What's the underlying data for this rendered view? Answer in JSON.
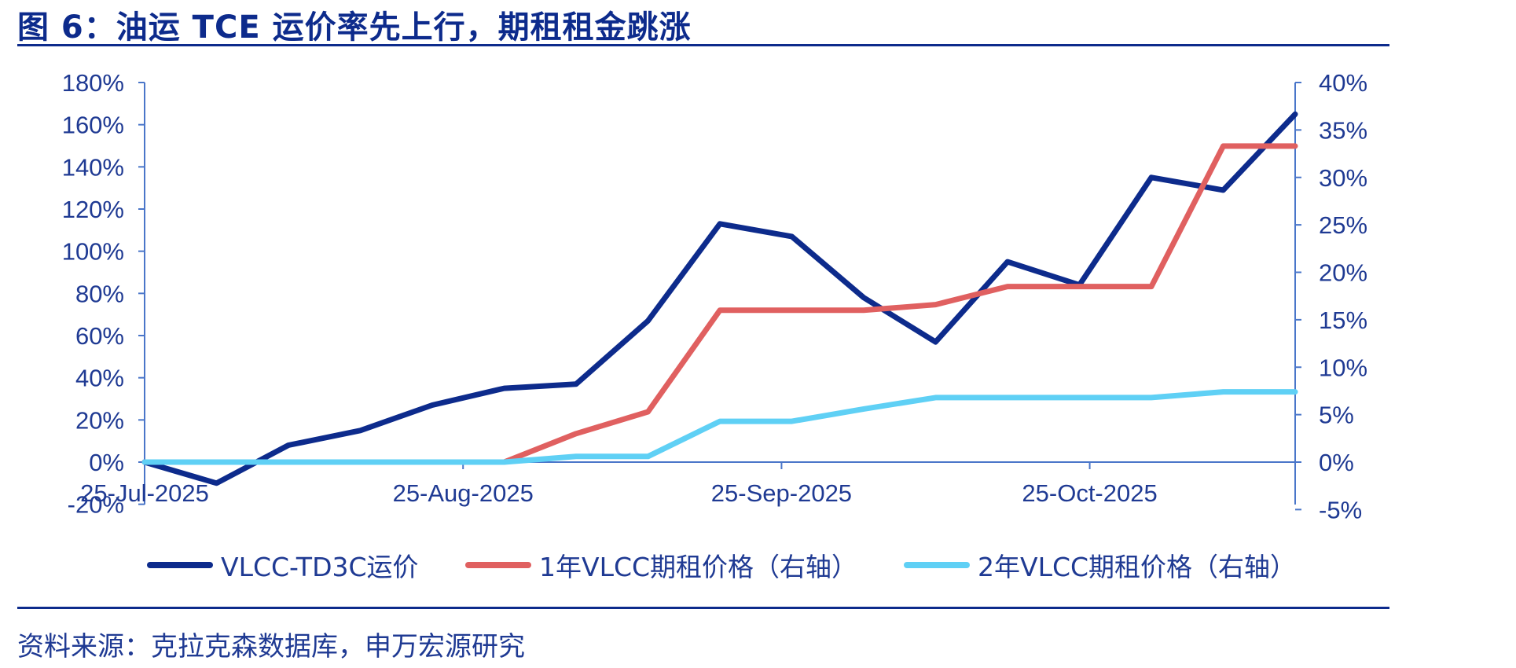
{
  "title": "图 6：油运 TCE 运价率先上行，期租租金跳涨",
  "source": "资料来源：克拉克森数据库，申万宏源研究",
  "colors": {
    "title": "#0d2b8c",
    "axis": "#4a76c9",
    "rule": "#0d2b8c"
  },
  "chart_data": {
    "type": "line",
    "x": [
      "2025-07-25",
      "2025-08-01",
      "2025-08-08",
      "2025-08-15",
      "2025-08-22",
      "2025-08-29",
      "2025-09-05",
      "2025-09-12",
      "2025-09-19",
      "2025-09-26",
      "2025-10-03",
      "2025-10-10",
      "2025-10-17",
      "2025-10-24",
      "2025-10-31",
      "2025-11-07",
      "2025-11-14"
    ],
    "x_tick_labels": [
      "25-Jul-2025",
      "25-Aug-2025",
      "25-Sep-2025",
      "25-Oct-2025"
    ],
    "x_tick_dates": [
      "2025-07-25",
      "2025-08-25",
      "2025-09-25",
      "2025-10-25"
    ],
    "y_left": {
      "ticks": [
        "180%",
        "160%",
        "140%",
        "120%",
        "100%",
        "80%",
        "60%",
        "40%",
        "20%",
        "0%",
        "-20%"
      ],
      "ylim": [
        -20,
        180
      ]
    },
    "y_right": {
      "ticks": [
        "40%",
        "35%",
        "30%",
        "25%",
        "20%",
        "15%",
        "10%",
        "5%",
        "0%",
        "-5%"
      ],
      "ylim": [
        -5,
        40
      ]
    },
    "legend_position": "bottom",
    "grid": false,
    "series": [
      {
        "name": "VLCC-TD3C运价",
        "axis": "left",
        "color": "#0d2b8c",
        "values": [
          0,
          -10,
          8,
          15,
          27,
          35,
          37,
          67,
          113,
          107,
          78,
          57,
          95,
          84,
          135,
          129,
          165
        ]
      },
      {
        "name": "1年VLCC期租价格（右轴）",
        "axis": "right",
        "color": "#e06060",
        "values": [
          0,
          0,
          0,
          0,
          0,
          0,
          3,
          5.3,
          16,
          16,
          16,
          16.6,
          18.5,
          18.5,
          18.5,
          33.3,
          33.3
        ]
      },
      {
        "name": "2年VLCC期租价格（右轴）",
        "axis": "right",
        "color": "#5fd0f5",
        "values": [
          0,
          0,
          0,
          0,
          0,
          0,
          0.6,
          0.6,
          4.3,
          4.3,
          5.6,
          6.8,
          6.8,
          6.8,
          6.8,
          7.4,
          7.4
        ]
      }
    ]
  }
}
